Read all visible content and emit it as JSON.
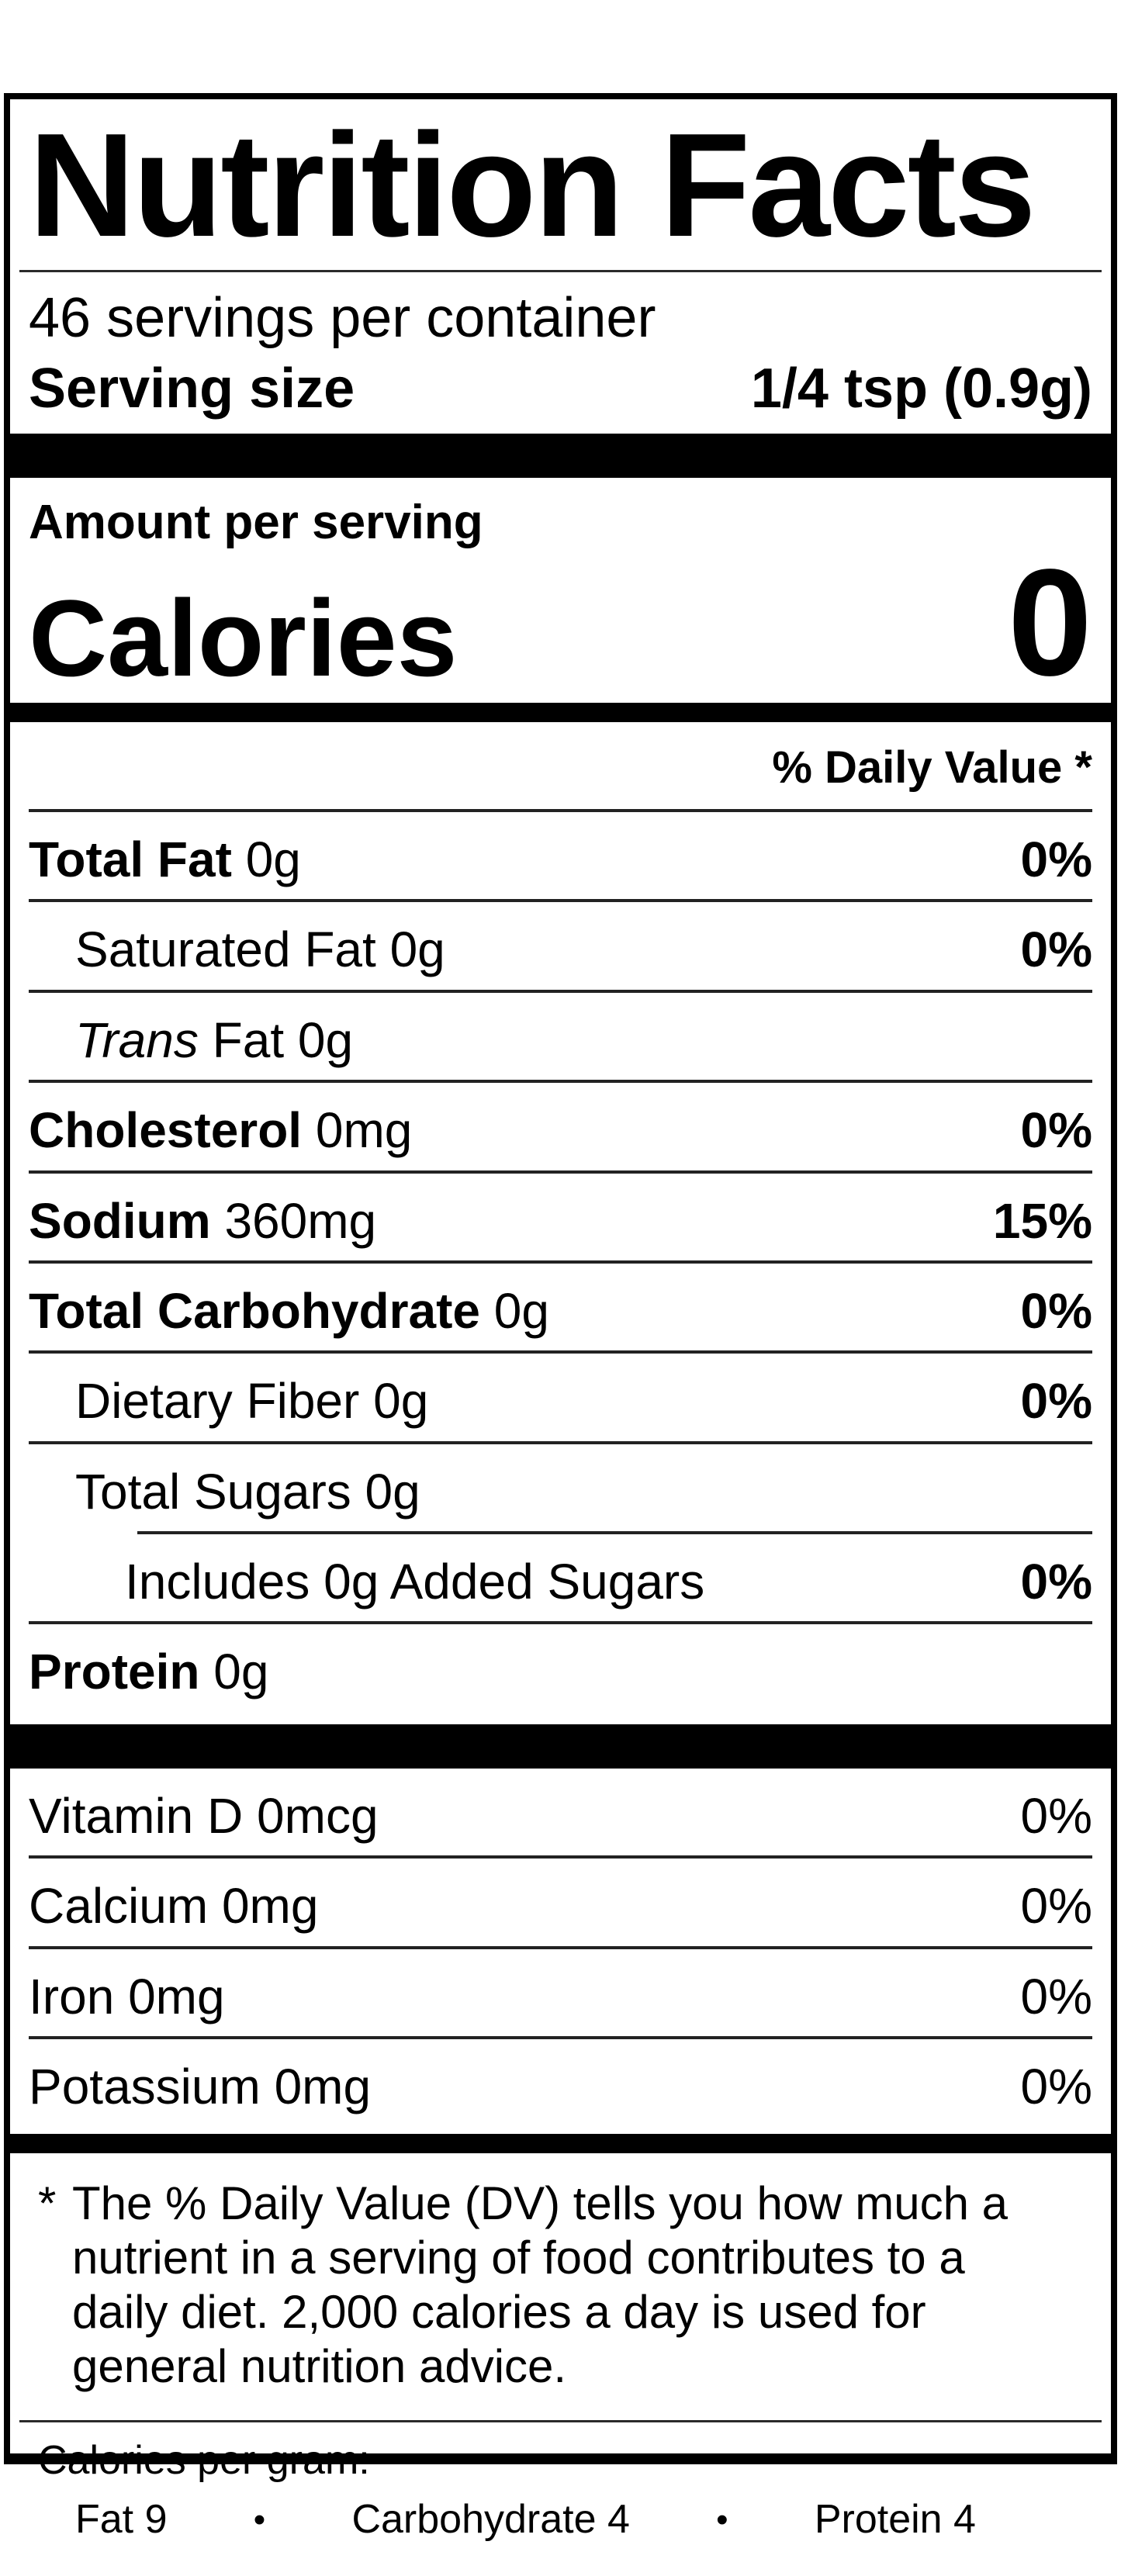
{
  "label": {
    "title": "Nutrition Facts",
    "servings_per_container": "46 servings per container",
    "serving_size_label": "Serving size",
    "serving_size_value": "1/4 tsp (0.9g)",
    "amount_per_serving": "Amount per serving",
    "calories_label": "Calories",
    "calories_value": "0",
    "daily_value_header": "% Daily Value *",
    "nutrients": [
      {
        "name": "Total Fat",
        "amount": "0g",
        "dv": "0%"
      },
      {
        "name": "Saturated Fat",
        "amount": "0g",
        "dv": "0%"
      },
      {
        "name": "Trans",
        "amount": "Fat 0g",
        "dv": ""
      },
      {
        "name": "Cholesterol",
        "amount": "0mg",
        "dv": "0%"
      },
      {
        "name": "Sodium",
        "amount": "360mg",
        "dv": "15%"
      },
      {
        "name": "Total Carbohydrate",
        "amount": "0g",
        "dv": "0%"
      },
      {
        "name": "Dietary Fiber",
        "amount": "0g",
        "dv": "0%"
      },
      {
        "name": "Total Sugars",
        "amount": "0g",
        "dv": ""
      },
      {
        "name": "Includes 0g Added Sugars",
        "amount": "",
        "dv": "0%"
      },
      {
        "name": "Protein",
        "amount": "0g",
        "dv": ""
      }
    ],
    "vitamins": [
      {
        "name": "Vitamin D",
        "amount": "0mcg",
        "dv": "0%"
      },
      {
        "name": "Calcium",
        "amount": "0mg",
        "dv": "0%"
      },
      {
        "name": "Iron",
        "amount": "0mg",
        "dv": "0%"
      },
      {
        "name": "Potassium",
        "amount": "0mg",
        "dv": "0%"
      }
    ],
    "footnote": {
      "marker": "*",
      "lines": [
        "The % Daily Value (DV) tells you how much a",
        "nutrient in a serving of food contributes to a",
        "daily diet. 2,000 calories a day is used for",
        "general nutrition advice."
      ]
    },
    "calories_per_gram": {
      "heading": "Calories per gram:",
      "bullet": "•",
      "items": [
        {
          "label": "Fat 9"
        },
        {
          "label": "Carbohydrate 4"
        },
        {
          "label": "Protein 4"
        }
      ]
    }
  }
}
